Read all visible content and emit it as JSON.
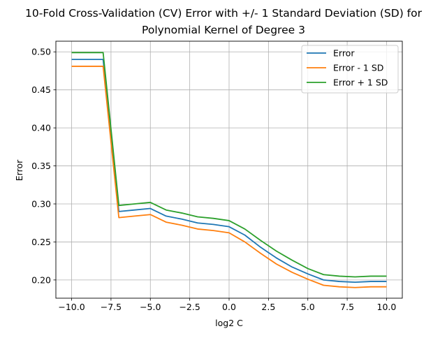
{
  "chart_data": {
    "type": "line",
    "title": [
      "10-Fold Cross-Validation (CV) Error with +/- 1 Standard Deviation (SD) for",
      "Polynomial Kernel of Degree 3"
    ],
    "xlabel": "log2 C",
    "ylabel": "Error",
    "xlim": [
      -11,
      11
    ],
    "ylim": [
      0.176,
      0.514
    ],
    "xticks": [
      -10.0,
      -7.5,
      -5.0,
      -2.5,
      0.0,
      2.5,
      5.0,
      7.5,
      10.0
    ],
    "xtick_labels": [
      "−10.0",
      "−7.5",
      "−5.0",
      "−2.5",
      "0.0",
      "2.5",
      "5.0",
      "7.5",
      "10.0"
    ],
    "yticks": [
      0.2,
      0.25,
      0.3,
      0.35,
      0.4,
      0.45,
      0.5
    ],
    "ytick_labels": [
      "0.20",
      "0.25",
      "0.30",
      "0.35",
      "0.40",
      "0.45",
      "0.50"
    ],
    "grid": true,
    "legend_position": "top-right",
    "x": [
      -10,
      -9,
      -8,
      -7,
      -6,
      -5,
      -4,
      -3,
      -2,
      -1,
      0,
      1,
      2,
      3,
      4,
      5,
      6,
      7,
      8,
      9,
      10
    ],
    "series": [
      {
        "name": "Error",
        "color": "#1f77b4",
        "values": [
          0.49,
          0.49,
          0.49,
          0.29,
          0.292,
          0.294,
          0.284,
          0.28,
          0.275,
          0.273,
          0.27,
          0.259,
          0.243,
          0.229,
          0.217,
          0.208,
          0.2,
          0.198,
          0.197,
          0.198,
          0.198
        ]
      },
      {
        "name": "Error - 1 SD",
        "color": "#ff7f0e",
        "values": [
          0.481,
          0.481,
          0.481,
          0.282,
          0.284,
          0.286,
          0.276,
          0.272,
          0.267,
          0.265,
          0.262,
          0.25,
          0.235,
          0.221,
          0.21,
          0.201,
          0.193,
          0.191,
          0.19,
          0.191,
          0.191
        ]
      },
      {
        "name": "Error + 1 SD",
        "color": "#2ca02c",
        "values": [
          0.499,
          0.499,
          0.499,
          0.298,
          0.3,
          0.302,
          0.292,
          0.288,
          0.283,
          0.281,
          0.278,
          0.267,
          0.252,
          0.238,
          0.226,
          0.215,
          0.207,
          0.205,
          0.204,
          0.205,
          0.205
        ]
      }
    ]
  }
}
